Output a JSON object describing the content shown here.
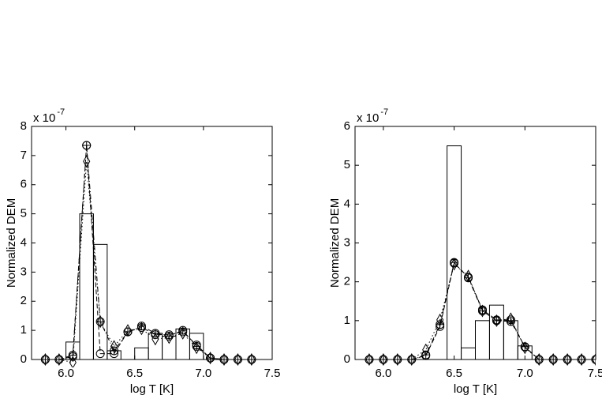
{
  "chart_data": [
    {
      "type": "line",
      "xlabel": "log T [K]",
      "ylabel": "Normalized  DEM",
      "y_scale_label": "x 10",
      "y_scale_exponent": "-7",
      "xlim": [
        5.75,
        7.5
      ],
      "ylim": [
        0,
        8
      ],
      "xticks": [
        {
          "value": 6,
          "label": "6.0"
        },
        {
          "value": 6.5,
          "label": "6.5"
        },
        {
          "value": 7,
          "label": "7.0"
        },
        {
          "value": 7.5,
          "label": "7.5"
        }
      ],
      "yticks": [
        0,
        1,
        2,
        3,
        4,
        5,
        6,
        7,
        8
      ],
      "x": [
        5.85,
        5.95,
        6.05,
        6.15,
        6.25,
        6.35,
        6.45,
        6.55,
        6.65,
        6.75,
        6.85,
        6.95,
        7.05,
        7.15,
        7.25,
        7.35
      ],
      "histogram": {
        "color": "#000000",
        "bins": [
          5.8,
          5.9,
          6.0,
          6.1,
          6.2,
          6.3,
          6.4,
          6.5,
          6.6,
          6.7,
          6.8,
          6.9,
          7.0,
          7.1,
          7.2,
          7.3,
          7.4
        ],
        "values": [
          0,
          0,
          0.6,
          5.0,
          3.95,
          0.3,
          0,
          0.4,
          0.9,
          0.8,
          1.05,
          0.9,
          0,
          0,
          0,
          0
        ]
      },
      "series": [
        {
          "marker": "circle",
          "dash": "dashed",
          "color": "#000000",
          "values": [
            0,
            0,
            0.1,
            7.35,
            0.2,
            0.2,
            0.95,
            1.1,
            0.85,
            0.85,
            0.95,
            0.5,
            0.05,
            0,
            0,
            0
          ]
        },
        {
          "marker": "plus-circle",
          "dash": "dash-dot",
          "color": "#000000",
          "values": [
            0,
            0,
            0.15,
            7.35,
            1.3,
            0.3,
            0.95,
            1.15,
            0.9,
            0.8,
            1.0,
            0.45,
            0.05,
            0,
            0,
            0
          ]
        },
        {
          "marker": "diamond",
          "dash": "dotted",
          "color": "#000000",
          "values": [
            0,
            0,
            -0.1,
            6.8,
            1.3,
            0.45,
            1.0,
            1.05,
            0.7,
            0.75,
            0.9,
            0.4,
            0.05,
            0,
            0,
            0
          ]
        }
      ]
    },
    {
      "type": "line",
      "xlabel": "log T [K]",
      "ylabel": "Normalized  DEM",
      "y_scale_label": "x 10",
      "y_scale_exponent": "-7",
      "xlim": [
        5.8,
        7.5
      ],
      "ylim": [
        0,
        6
      ],
      "xticks": [
        {
          "value": 6,
          "label": "6.0"
        },
        {
          "value": 6.5,
          "label": "6.5"
        },
        {
          "value": 7,
          "label": "7.0"
        },
        {
          "value": 7.5,
          "label": "7.5"
        }
      ],
      "yticks": [
        0,
        1,
        2,
        3,
        4,
        5,
        6
      ],
      "x": [
        5.9,
        6.0,
        6.1,
        6.2,
        6.3,
        6.4,
        6.5,
        6.6,
        6.7,
        6.8,
        6.9,
        7.0,
        7.1,
        7.2,
        7.3,
        7.4,
        7.5
      ],
      "histogram": {
        "color": "#000000",
        "bins": [
          5.85,
          5.95,
          6.05,
          6.15,
          6.25,
          6.35,
          6.45,
          6.55,
          6.65,
          6.75,
          6.85,
          6.95,
          7.05,
          7.15,
          7.25,
          7.35,
          7.45,
          7.55
        ],
        "values": [
          0,
          0,
          0,
          0,
          0,
          0,
          5.5,
          0.3,
          1.0,
          1.4,
          1.0,
          0.35,
          0,
          0,
          0,
          0,
          0
        ]
      },
      "series": [
        {
          "marker": "circle",
          "dash": "dashed",
          "color": "#000000",
          "values": [
            0,
            0,
            0,
            0,
            0.1,
            0.85,
            2.48,
            2.12,
            1.28,
            1.02,
            1.02,
            0.32,
            0,
            0,
            0,
            0,
            0
          ]
        },
        {
          "marker": "plus-circle",
          "dash": "dash-dot",
          "color": "#000000",
          "values": [
            0,
            0,
            0,
            0,
            0.12,
            0.9,
            2.5,
            2.1,
            1.25,
            1.0,
            0.98,
            0.33,
            0,
            0,
            0,
            0,
            0
          ]
        },
        {
          "marker": "diamond",
          "dash": "dotted",
          "color": "#000000",
          "values": [
            0,
            0,
            0,
            0,
            0.25,
            1.02,
            2.45,
            2.15,
            1.25,
            1.0,
            1.05,
            0.3,
            0,
            0,
            0,
            0,
            0
          ]
        }
      ]
    }
  ]
}
